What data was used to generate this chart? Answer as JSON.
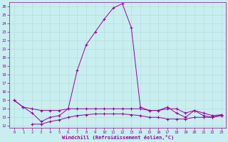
{
  "xlabel": "Windchill (Refroidissement éolien,°C)",
  "bg_color": "#c8eef0",
  "line_color": "#990099",
  "grid_color": "#b8dde0",
  "xlim": [
    -0.5,
    23.5
  ],
  "ylim": [
    11.8,
    26.5
  ],
  "yticks": [
    12,
    13,
    14,
    15,
    16,
    17,
    18,
    19,
    20,
    21,
    22,
    23,
    24,
    25,
    26
  ],
  "xticks": [
    0,
    1,
    2,
    3,
    4,
    5,
    6,
    7,
    8,
    9,
    10,
    11,
    12,
    13,
    14,
    15,
    16,
    17,
    18,
    19,
    20,
    21,
    22,
    23
  ],
  "line1_x": [
    0,
    1,
    2,
    3,
    4,
    5,
    6,
    7,
    8,
    9,
    10,
    11,
    12,
    13,
    14,
    15,
    16,
    17,
    18,
    19,
    20,
    21,
    22,
    23
  ],
  "line1_y": [
    15.0,
    14.2,
    14.0,
    13.8,
    13.8,
    13.8,
    14.0,
    14.0,
    14.0,
    14.0,
    14.0,
    14.0,
    14.0,
    14.0,
    14.0,
    13.8,
    13.8,
    14.0,
    14.0,
    13.5,
    13.8,
    13.5,
    13.2,
    13.3
  ],
  "line2_x": [
    0,
    1,
    2,
    3,
    4,
    5,
    6,
    7,
    8,
    9,
    10,
    11,
    12,
    13,
    14,
    15,
    16,
    17,
    18,
    19,
    20,
    21,
    22,
    23
  ],
  "line2_y": [
    15.0,
    14.2,
    13.5,
    12.5,
    13.0,
    13.2,
    14.0,
    18.5,
    21.5,
    23.0,
    24.5,
    25.8,
    26.3,
    23.5,
    14.2,
    13.8,
    13.8,
    14.2,
    13.5,
    13.0,
    13.8,
    13.2,
    13.0,
    13.3
  ],
  "line3_x": [
    2,
    3,
    4,
    5,
    6,
    7,
    8,
    9,
    10,
    11,
    12,
    13,
    14,
    15,
    16,
    17,
    18,
    19,
    20,
    21,
    22,
    23
  ],
  "line3_y": [
    12.2,
    12.2,
    12.5,
    12.7,
    13.0,
    13.2,
    13.3,
    13.4,
    13.4,
    13.4,
    13.4,
    13.3,
    13.2,
    13.0,
    13.0,
    12.8,
    12.8,
    12.8,
    13.0,
    13.0,
    13.0,
    13.2
  ]
}
